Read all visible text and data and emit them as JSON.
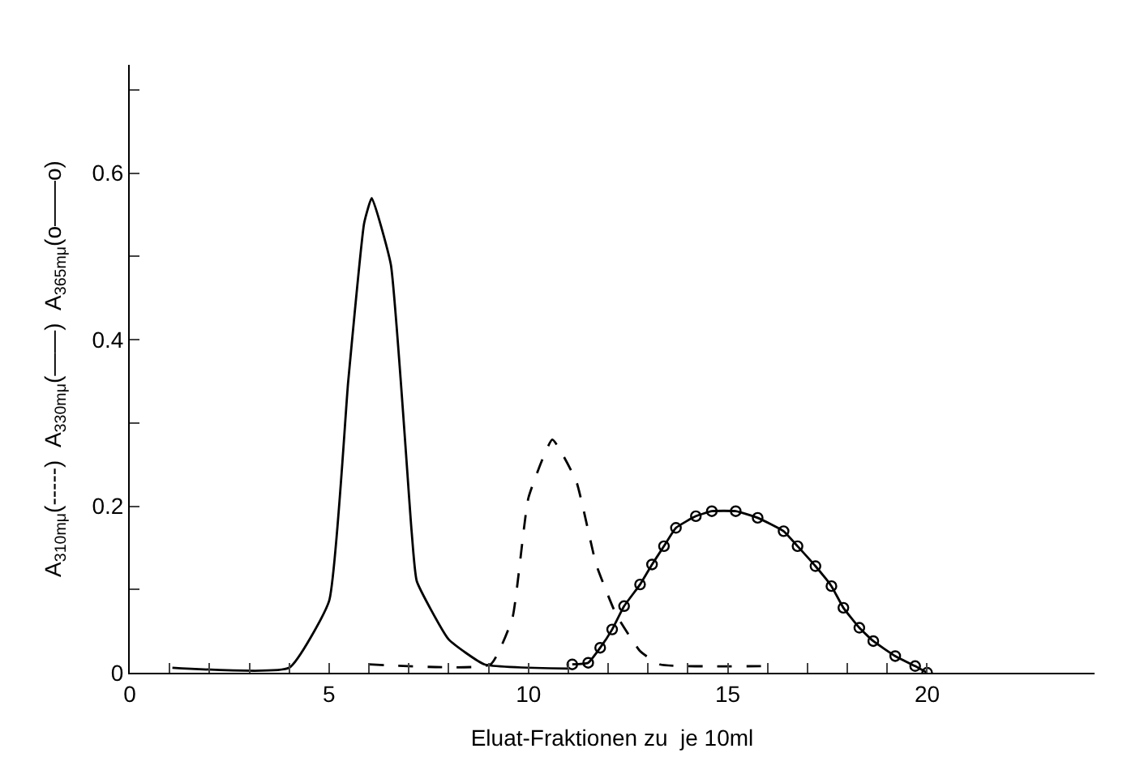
{
  "chart_data": {
    "type": "line",
    "xlabel": "Eluat-Fraktionen zu  je 10ml",
    "ylabel": "A$_{310mμ}$(-----)  A$_{330mμ}$(——)  A$_{365mμ}$(o——o)",
    "xlim": [
      0,
      24.2
    ],
    "ylim": [
      0,
      0.73
    ],
    "xticks": [
      0,
      {
        "value": 1,
        "label": null
      },
      {
        "value": 2,
        "label": null
      },
      {
        "value": 3,
        "label": null
      },
      {
        "value": 4,
        "label": null
      },
      5,
      {
        "value": 6,
        "label": null
      },
      {
        "value": 7,
        "label": null
      },
      {
        "value": 8,
        "label": null
      },
      {
        "value": 9,
        "label": null
      },
      10,
      {
        "value": 11,
        "label": null
      },
      {
        "value": 12,
        "label": null
      },
      {
        "value": 13,
        "label": null
      },
      {
        "value": 14,
        "label": null
      },
      15,
      {
        "value": 16,
        "label": null
      },
      {
        "value": 17,
        "label": null
      },
      {
        "value": 18,
        "label": null
      },
      {
        "value": 19,
        "label": null
      },
      20
    ],
    "yticks": [
      0,
      {
        "value": 0.1,
        "label": null
      },
      {
        "value": 0.2,
        "label": "0.2"
      },
      {
        "value": 0.3,
        "label": null
      },
      {
        "value": 0.4,
        "label": "0.4"
      },
      {
        "value": 0.5,
        "label": null
      },
      {
        "value": 0.6,
        "label": "0.6"
      },
      {
        "value": 0.7,
        "label": null
      }
    ],
    "series": [
      {
        "color": "#000000",
        "line_style": "dashed",
        "marker": "none",
        "x": [
          6,
          9.05,
          9.6,
          10.0,
          10.6,
          11.2,
          11.7,
          12.2,
          12.8,
          13.3,
          16
        ],
        "values": [
          0.01,
          0.01,
          0.066,
          0.21,
          0.28,
          0.23,
          0.13,
          0.07,
          0.026,
          0.01,
          0.008
        ]
      },
      {
        "color": "#000000",
        "line_style": "solid",
        "marker": "none",
        "x": [
          1.07,
          4.0,
          5.0,
          5.48,
          5.88,
          6.07,
          6.55,
          7.07,
          7.2,
          8.0,
          8.9,
          11
        ],
        "values": [
          0.006,
          0.006,
          0.086,
          0.35,
          0.54,
          0.57,
          0.49,
          0.17,
          0.11,
          0.04,
          0.01,
          0.005
        ]
      },
      {
        "color": "#000000",
        "line_style": "solid",
        "marker": "circle",
        "x": [
          11.1,
          11.5,
          11.8,
          12.1,
          12.4,
          12.8,
          13.1,
          13.4,
          13.7,
          14.2,
          14.6,
          15.2,
          15.75,
          16.4,
          16.75,
          17.2,
          17.6,
          17.9,
          18.3,
          18.65,
          19.2,
          19.7,
          20.0
        ],
        "values": [
          0.01,
          0.012,
          0.03,
          0.052,
          0.08,
          0.106,
          0.13,
          0.152,
          0.174,
          0.188,
          0.194,
          0.194,
          0.186,
          0.17,
          0.152,
          0.128,
          0.104,
          0.078,
          0.054,
          0.038,
          0.02,
          0.008,
          0.0
        ]
      }
    ]
  }
}
